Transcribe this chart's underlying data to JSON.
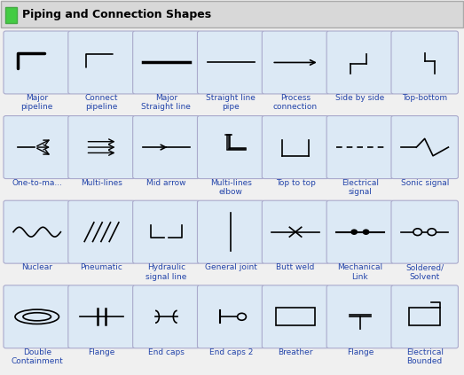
{
  "title": "Piping and Connection Shapes",
  "title_color": "#2222aa",
  "title_bg": "#e0e0e0",
  "cell_bg": "#dce9f5",
  "cell_border": "#aaaacc",
  "fig_bg": "#f0f0f0",
  "label_color": "#2244aa",
  "ncols": 7,
  "nrows": 4,
  "labels": [
    [
      "Major\npipeline",
      "Connect\npipeline",
      "Major\nStraight line",
      "Straight line\npipe",
      "Process\nconnection",
      "Side by side",
      "Top-bottom"
    ],
    [
      "One-to-ma...",
      "Multi-lines",
      "Mid arrow",
      "Multi-lines\nelbow",
      "Top to top",
      "Electrical\nsignal",
      "Sonic signal"
    ],
    [
      "Nuclear",
      "Pneumatic",
      "Hydraulic\nsignal line",
      "General joint",
      "Butt weld",
      "Mechanical\nLink",
      "Soldered/\nSolvent"
    ],
    [
      "Double\nContainment",
      "Flange",
      "End caps",
      "End caps 2",
      "Breather",
      "Flange",
      "Electrical\nBounded"
    ]
  ]
}
